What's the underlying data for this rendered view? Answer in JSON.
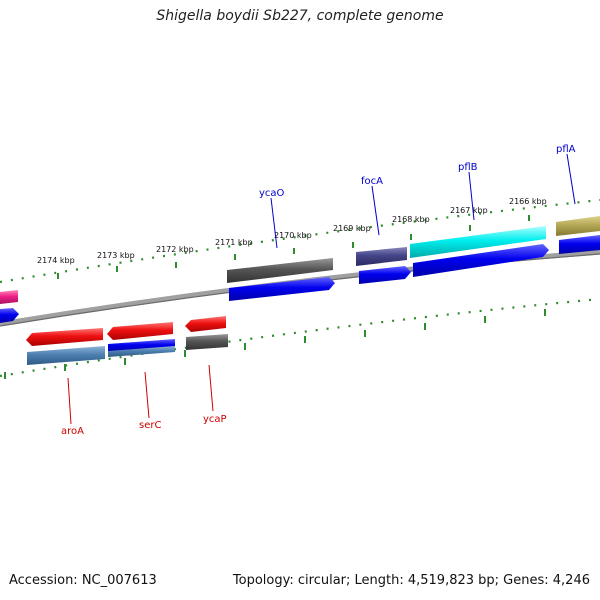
{
  "title": "Shigella boydii Sb227, complete genome",
  "footer": {
    "accession": "Accession: NC_007613",
    "summary": "Topology: circular; Length: 4,519,823 bp; Genes: 4,246"
  },
  "colors": {
    "tick": "#2e8b2e",
    "backbone": "#8a8a8a",
    "label_upper": "#0000cc",
    "label_lower": "#cc0000",
    "red": "#ee1111",
    "blue": "#0000ee",
    "gray": "#555555",
    "steel": "#4d7fb0",
    "indigo": "#44448a",
    "cyan": "#00eeee",
    "olive": "#b5a855",
    "pink": "#ee2288"
  },
  "kbp_labels": [
    "2174 kbp",
    "2173 kbp",
    "2172 kbp",
    "2171 kbp",
    "2170 kbp",
    "2169 kbp",
    "2168 kbp",
    "2167 kbp",
    "2166 kbp"
  ],
  "gene_labels_upper": [
    "ycaO",
    "focA",
    "pflB",
    "pflA"
  ],
  "gene_labels_lower": [
    "aroA",
    "serC",
    "ycaP"
  ]
}
